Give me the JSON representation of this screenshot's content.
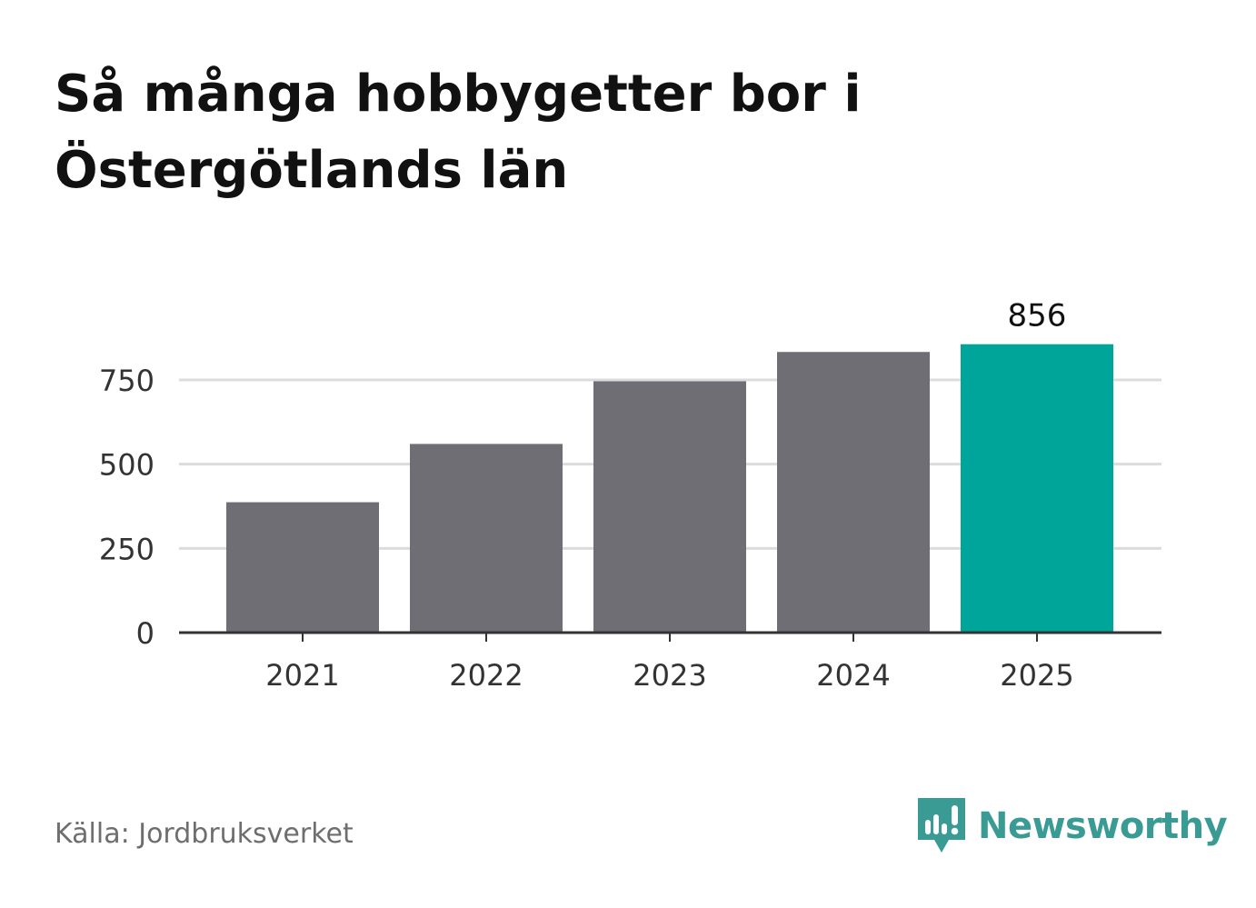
{
  "chart_data": {
    "type": "bar",
    "title": "Så många hobbygetter bor i Östergötlands län",
    "categories": [
      "2021",
      "2022",
      "2023",
      "2024",
      "2025"
    ],
    "values": [
      387,
      560,
      746,
      833,
      856
    ],
    "labeled_value": "856",
    "highlight_index": 4,
    "ylim": [
      0,
      900
    ],
    "yticks": [
      0,
      250,
      500,
      750
    ],
    "ytick_labels": [
      "0",
      "250",
      "500",
      "750"
    ],
    "grid": true,
    "xlabel": "",
    "ylabel": "",
    "colors": {
      "bar": "#6f6e74",
      "highlight": "#00a59a",
      "grid": "#dcdcdc",
      "axis": "#333333"
    }
  },
  "source": "Källa: Jordbruksverket",
  "brand": {
    "name": "Newsworthy",
    "icon": "newsworthy-logo-icon",
    "color": "#3a9b95"
  }
}
